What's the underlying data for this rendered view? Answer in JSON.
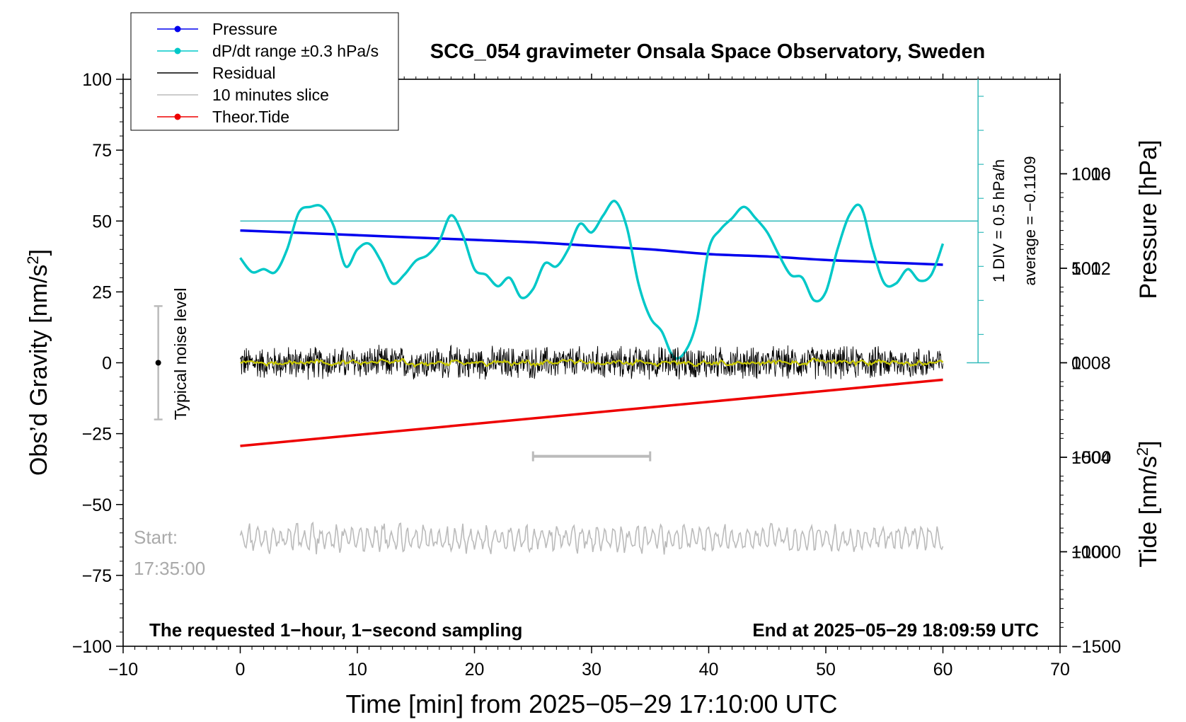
{
  "chart_data": {
    "type": "line",
    "title": "SCG_054 gravimeter Onsala Space Observatory, Sweden",
    "xlabel": "Time [min] from 2025−05−29 17:10:00 UTC",
    "ylabel_left": "Obs’d Gravity [nm/s",
    "ylabel_left_sup": "2",
    "ylabel_left_end": "]",
    "ylabel_right_pressure": "Pressure [hPa]",
    "ylabel_right_tide": "Tide [nm/s",
    "ylabel_right_tide_sup": "2",
    "ylabel_right_tide_end": "]",
    "xlim": [
      -10,
      70
    ],
    "ylim_left": [
      -100,
      100
    ],
    "pressure_lim": [
      996,
      1020
    ],
    "tide_lim": [
      -1500,
      1500
    ],
    "x_ticks": [
      {
        "v": -10,
        "label": "−10"
      },
      {
        "v": 0,
        "label": "0"
      },
      {
        "v": 10,
        "label": "10"
      },
      {
        "v": 20,
        "label": "20"
      },
      {
        "v": 30,
        "label": "30"
      },
      {
        "v": 40,
        "label": "40"
      },
      {
        "v": 50,
        "label": "50"
      },
      {
        "v": 60,
        "label": "60"
      },
      {
        "v": 70,
        "label": "70"
      }
    ],
    "y_left_ticks": [
      {
        "v": 100,
        "label": "100"
      },
      {
        "v": 75,
        "label": "75"
      },
      {
        "v": 50,
        "label": "50"
      },
      {
        "v": 25,
        "label": "25"
      },
      {
        "v": 0,
        "label": "0"
      },
      {
        "v": -25,
        "label": "−25"
      },
      {
        "v": -50,
        "label": "−50"
      },
      {
        "v": -75,
        "label": "−75"
      },
      {
        "v": -100,
        "label": "−100"
      }
    ],
    "pressure_ticks": [
      {
        "v": 1016,
        "label": "1016"
      },
      {
        "v": 1012,
        "label": "1012"
      },
      {
        "v": 1008,
        "label": "1008"
      },
      {
        "v": 1004,
        "label": "1004"
      },
      {
        "v": 1000,
        "label": "1000"
      }
    ],
    "tide_ticks": [
      {
        "v": 1000,
        "label": "1000"
      },
      {
        "v": 500,
        "label": "500"
      },
      {
        "v": 0,
        "label": "0"
      },
      {
        "v": -500,
        "label": "−500"
      },
      {
        "v": -1000,
        "label": "−1000"
      },
      {
        "v": -1500,
        "label": "−1500"
      }
    ],
    "legend": [
      {
        "label": "Pressure",
        "color": "#0000ee",
        "marker": true
      },
      {
        "label": "dP/dt range ±0.3 hPa/s",
        "color": "#00c8c8",
        "marker": true
      },
      {
        "label": "Residual",
        "color": "#000000",
        "marker": false
      },
      {
        "label": "10 minutes slice",
        "color": "#bbbbbb",
        "marker": false
      },
      {
        "label": "Theor.Tide",
        "color": "#ee0000",
        "marker": true
      }
    ],
    "legend_position": "top-left",
    "series": [
      {
        "name": "Pressure",
        "axis": "pressure",
        "color": "#0000ee",
        "x": [
          0,
          5,
          10,
          15,
          20,
          25,
          30,
          35,
          40,
          45,
          50,
          55,
          60
        ],
        "values": [
          1013.6,
          1013.5,
          1013.4,
          1013.3,
          1013.2,
          1013.1,
          1012.95,
          1012.8,
          1012.6,
          1012.5,
          1012.35,
          1012.25,
          1012.15
        ]
      },
      {
        "name": "dP/dt range ±0.3 hPa/s",
        "axis": "gravity",
        "color": "#00c8c8",
        "x": [
          0,
          1,
          2,
          3,
          4,
          5,
          6,
          7,
          8,
          9,
          10,
          11,
          12,
          13,
          14,
          15,
          16,
          17,
          18,
          19,
          20,
          21,
          22,
          23,
          24,
          25,
          26,
          27,
          28,
          29,
          30,
          31,
          32,
          33,
          34,
          35,
          36,
          37,
          38,
          39,
          40,
          41,
          42,
          43,
          44,
          45,
          46,
          47,
          48,
          49,
          50,
          51,
          52,
          53,
          54,
          55,
          56,
          57,
          58,
          59,
          60
        ],
        "values": [
          37,
          32,
          33,
          32,
          40,
          53,
          55,
          55,
          48,
          34,
          40,
          42,
          36,
          28,
          31,
          36,
          38,
          43,
          52,
          45,
          33,
          31,
          27,
          30,
          23,
          26,
          35,
          34,
          40,
          49,
          46,
          52,
          57,
          48,
          28,
          16,
          11,
          2,
          4,
          15,
          40,
          47,
          51,
          55,
          51,
          46,
          38,
          31,
          30,
          22,
          25,
          40,
          52,
          55,
          40,
          28,
          28,
          33,
          29,
          31,
          42
        ]
      },
      {
        "name": "Residual",
        "axis": "gravity",
        "color": "#000000",
        "x": [
          0,
          60
        ],
        "values": [
          0,
          0
        ],
        "noise_amplitude": 6
      },
      {
        "name": "10 minutes slice",
        "axis": "gravity",
        "color": "#bbbbbb",
        "x": [
          0,
          60
        ],
        "values": [
          -62,
          -62
        ],
        "noise_amplitude": 5
      },
      {
        "name": "Theor.Tide",
        "axis": "tide",
        "color": "#ee0000",
        "x": [
          0,
          60
        ],
        "values": [
          -440,
          -90
        ]
      }
    ],
    "mean_line": {
      "axis": "gravity",
      "value": 50,
      "color": "#33bbbb"
    },
    "noise_bar": {
      "x": -7,
      "center": 0,
      "low": -20,
      "high": 20,
      "label": "Typical noise level"
    },
    "slice_bar": {
      "x_start": 25,
      "x_end": 35,
      "y": -33
    },
    "dpdt_scale": {
      "x": 63,
      "y_low": 0,
      "y_high": 100,
      "label": "1 DIV = 0.5 hPa/h"
    },
    "average_label": "average = −0.1109",
    "start_label": "Start:",
    "start_time": "17:35:00",
    "bottom_left_note": "The requested 1−hour, 1−second sampling",
    "bottom_right_note": "End at 2025−05−29 18:09:59 UTC"
  }
}
